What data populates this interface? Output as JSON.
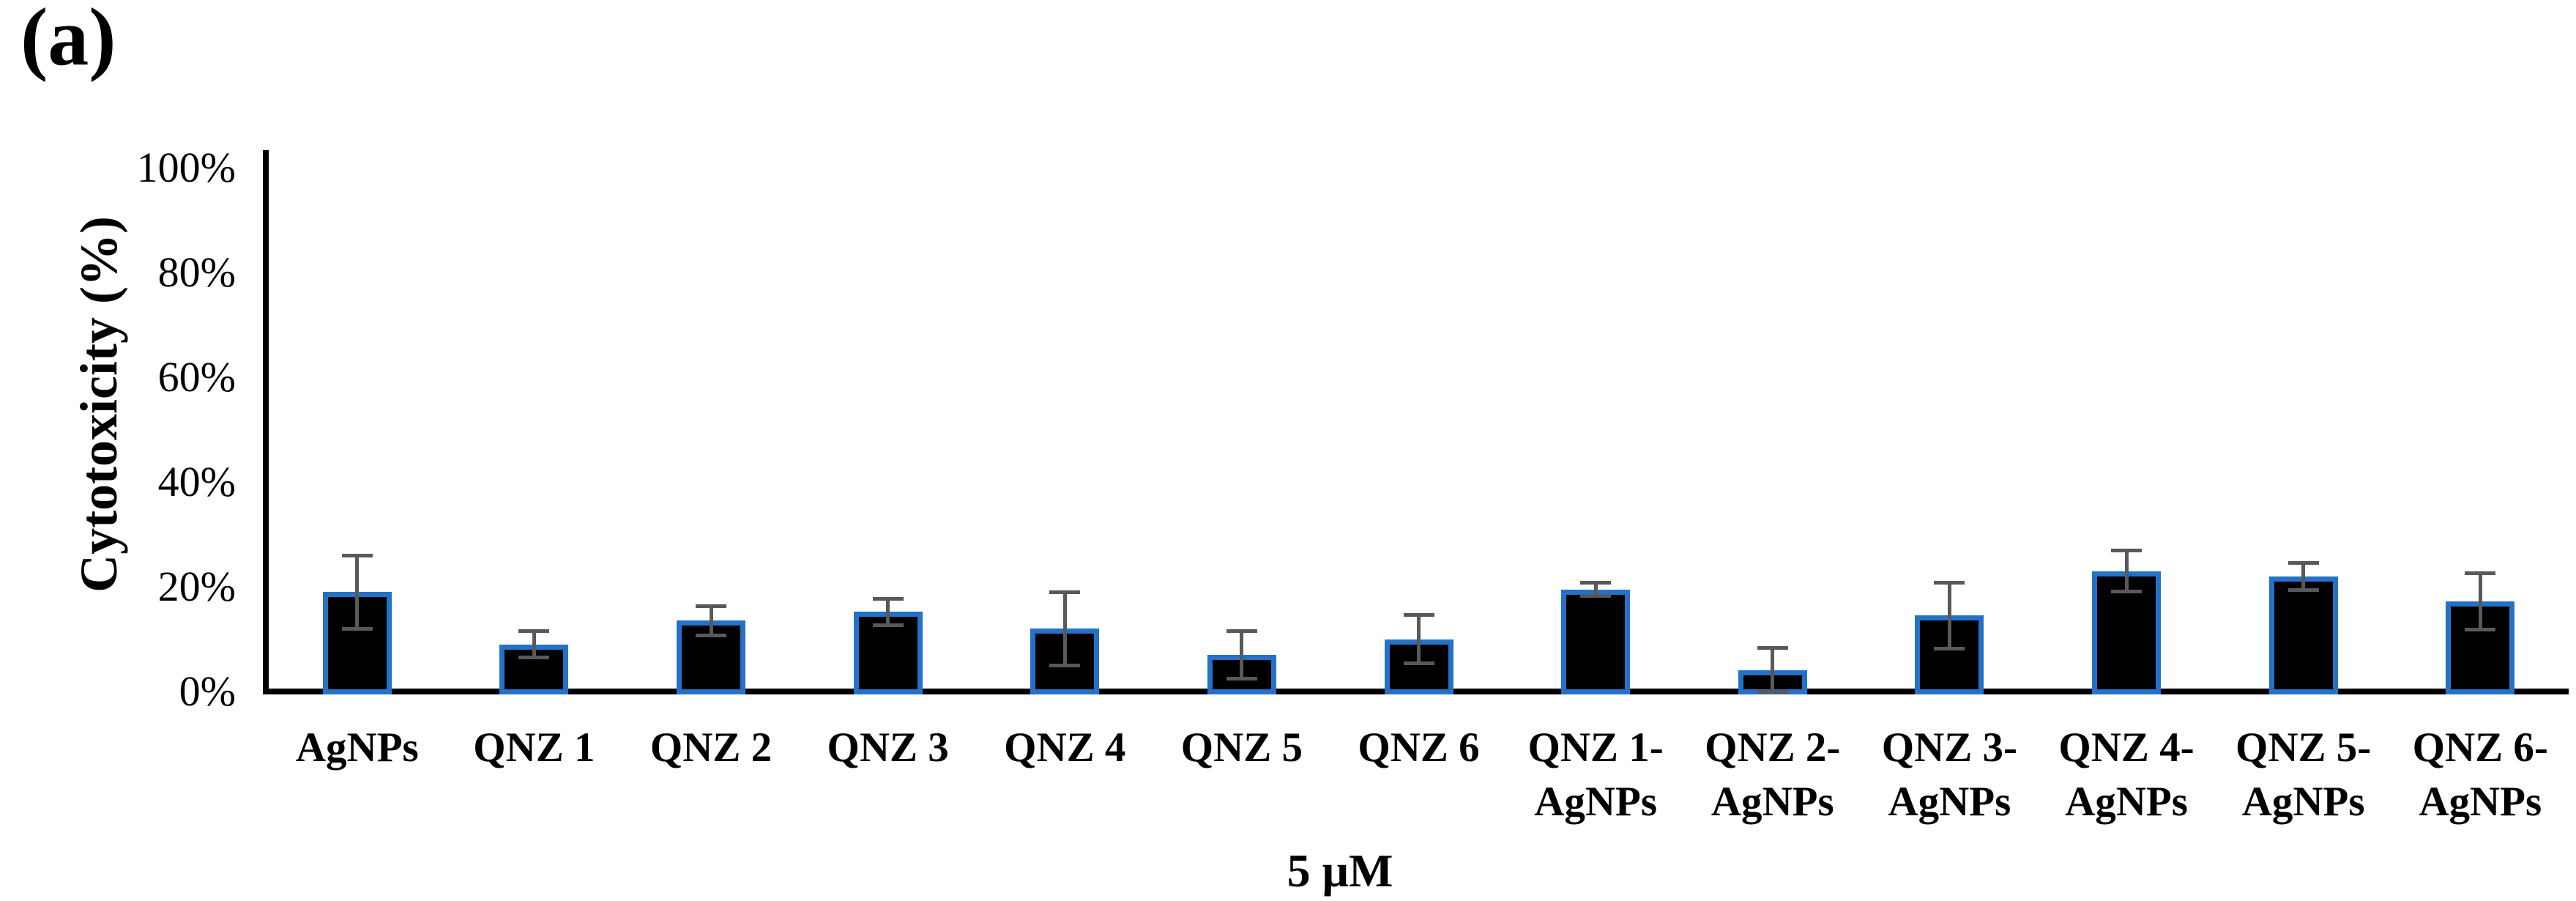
{
  "panel_label": "(a)",
  "chart_data": {
    "type": "bar",
    "title": "",
    "ylabel": "Cytotoxicity (%)",
    "xlabel": "5 μM",
    "ylim": [
      0,
      100
    ],
    "grid": false,
    "legend": null,
    "ytick_values": [
      0,
      20,
      40,
      60,
      80,
      100
    ],
    "ytick_labels": [
      "0%",
      "20%",
      "40%",
      "60%",
      "80%",
      "100%"
    ],
    "categories": [
      "AgNPs",
      "QNZ 1",
      "QNZ 2",
      "QNZ 3",
      "QNZ 4",
      "QNZ 5",
      "QNZ 6",
      "QNZ 1-AgNPs",
      "QNZ 2-AgNPs",
      "QNZ 3-AgNPs",
      "QNZ 4-AgNPs",
      "QNZ 5-AgNPs",
      "QNZ 6-AgNPs"
    ],
    "tick_lines": [
      [
        "AgNPs"
      ],
      [
        "QNZ 1"
      ],
      [
        "QNZ 2"
      ],
      [
        "QNZ 3"
      ],
      [
        "QNZ 4"
      ],
      [
        "QNZ 5"
      ],
      [
        "QNZ 6"
      ],
      [
        "QNZ 1-",
        "AgNPs"
      ],
      [
        "QNZ 2-",
        "AgNPs"
      ],
      [
        "QNZ 3-",
        "AgNPs"
      ],
      [
        "QNZ 4-",
        "AgNPs"
      ],
      [
        "QNZ 5-",
        "AgNPs"
      ],
      [
        "QNZ 6-",
        "AgNPs"
      ]
    ],
    "values": [
      19,
      9,
      13.5,
      15.2,
      12,
      7,
      10,
      19.5,
      4,
      14.5,
      23,
      22,
      17.2
    ],
    "errors": [
      7,
      2.5,
      2.8,
      2.5,
      7,
      4.5,
      4.6,
      1.2,
      4.3,
      6.3,
      3.9,
      2.6,
      5.4
    ],
    "colors": {
      "bar_fill": "#000000",
      "bar_border": "#2472C8",
      "error_bar": "#595959",
      "axis": "#000000",
      "text": "#000000",
      "background": "#FFFFFF"
    }
  }
}
